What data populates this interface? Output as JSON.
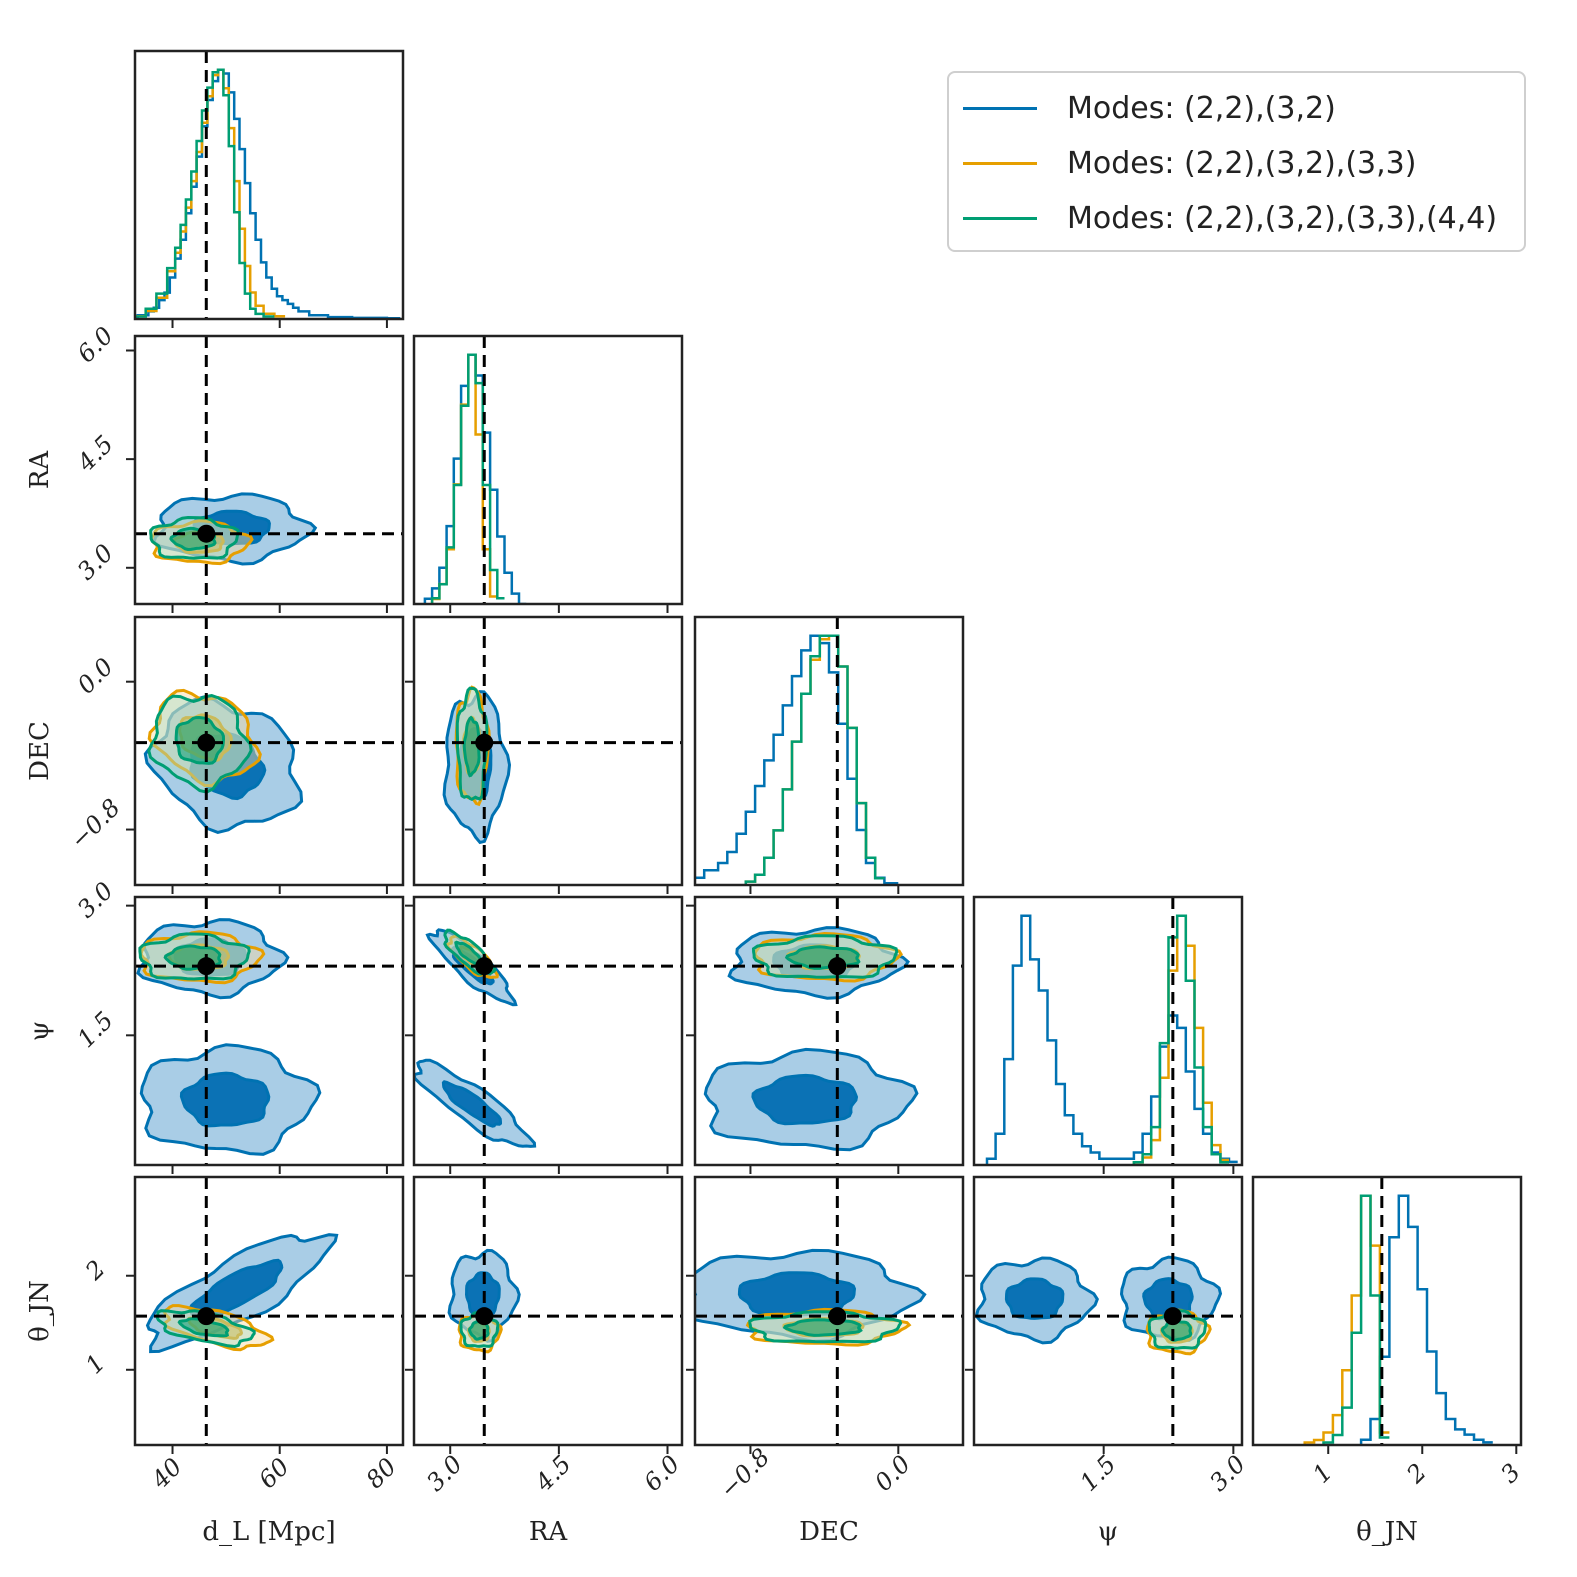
{
  "chart_data": {
    "type": "corner",
    "parameters": [
      {
        "key": "dL",
        "label": "d_L [Mpc]",
        "range": [
          33,
          83
        ],
        "ticks": [
          40,
          60,
          80
        ],
        "truth": 46.3
      },
      {
        "key": "RA",
        "label": "RA",
        "range": [
          2.5,
          6.2
        ],
        "ticks": [
          3.0,
          4.5,
          6.0
        ],
        "truth": 3.47
      },
      {
        "key": "DEC",
        "label": "DEC",
        "range": [
          -1.1,
          0.35
        ],
        "ticks": [
          -0.8,
          0.0
        ],
        "truth": -0.33
      },
      {
        "key": "psi",
        "label": "ψ",
        "range": [
          0.0,
          3.1
        ],
        "ticks": [
          1.5,
          3.0
        ],
        "truth": 2.3
      },
      {
        "key": "theta",
        "label": "θ_JN",
        "range": [
          0.2,
          3.05
        ],
        "ticks": [
          1,
          2,
          3
        ],
        "truth": 1.57
      }
    ],
    "y_ticks": {
      "RA": [
        {
          "v": 3.0,
          "t": "3.0"
        },
        {
          "v": 4.5,
          "t": "4.5"
        },
        {
          "v": 6.0,
          "t": "6.0"
        }
      ],
      "DEC": [
        {
          "v": -0.8,
          "t": "−0.8"
        },
        {
          "v": 0.0,
          "t": "0.0"
        }
      ],
      "psi": [
        {
          "v": 1.5,
          "t": "1.5"
        },
        {
          "v": 3.0,
          "t": "3.0"
        }
      ],
      "theta": [
        {
          "v": 1,
          "t": "1"
        },
        {
          "v": 2,
          "t": "2"
        }
      ]
    },
    "x_ticks": {
      "dL": [
        "40",
        "60",
        "80"
      ],
      "RA": [
        "3.0",
        "4.5",
        "6.0"
      ],
      "DEC": [
        "−0.8",
        "0.0"
      ],
      "psi": [
        "1.5",
        "3.0"
      ],
      "theta": [
        "1",
        "2",
        "3"
      ]
    },
    "series": [
      {
        "name": "Modes:  (2,2),(3,2)",
        "color": "#0072B2",
        "fill_light": "#a9cde6",
        "fill_dark": "#0b72b5",
        "marginals": {
          "dL": {
            "centers": [
              33,
              34,
              35,
              36,
              37,
              38,
              39,
              40,
              41,
              42,
              43,
              44,
              45,
              46,
              47,
              48,
              49,
              50,
              51,
              52,
              53,
              54,
              55,
              56,
              57,
              58,
              59,
              60,
              61,
              62,
              63,
              64,
              65,
              66,
              67,
              68,
              70,
              72,
              75,
              78,
              82
            ],
            "counts": [
              0,
              1,
              1,
              2,
              3,
              5,
              7,
              11,
              16,
              21,
              28,
              35,
              43,
              51,
              58,
              63,
              66,
              65,
              60,
              53,
              45,
              36,
              28,
              21,
              15,
              11,
              8,
              6,
              5,
              4,
              3,
              2,
              2,
              1,
              1,
              1,
              0.5,
              0.5,
              0.3,
              0.3,
              0.2
            ]
          },
          "RA": {
            "centers": [
              2.7,
              2.8,
              2.9,
              3.0,
              3.1,
              3.2,
              3.3,
              3.4,
              3.5,
              3.6,
              3.7,
              3.8,
              3.9,
              4.0
            ],
            "counts": [
              1,
              3,
              7,
              15,
              28,
              42,
              48,
              44,
              33,
              22,
              13,
              6,
              2,
              0
            ]
          },
          "DEC": {
            "centers": [
              -1.1,
              -1.0,
              -0.95,
              -0.9,
              -0.85,
              -0.8,
              -0.75,
              -0.7,
              -0.65,
              -0.6,
              -0.55,
              -0.5,
              -0.45,
              -0.4,
              -0.35,
              -0.3,
              -0.25,
              -0.2,
              -0.15,
              -0.1,
              -0.05
            ],
            "counts": [
              2,
              4,
              6,
              9,
              14,
              20,
              27,
              34,
              41,
              49,
              57,
              64,
              68,
              66,
              58,
              44,
              29,
              15,
              6,
              2,
              0.5
            ]
          },
          "psi": {
            "centers": [
              0.2,
              0.3,
              0.4,
              0.5,
              0.6,
              0.7,
              0.8,
              0.9,
              1.0,
              1.1,
              1.2,
              1.3,
              1.4,
              1.5,
              1.6,
              1.7,
              1.8,
              1.9,
              2.0,
              2.1,
              2.2,
              2.3,
              2.4,
              2.5,
              2.6,
              2.7,
              2.8,
              2.9,
              3.0
            ],
            "counts": [
              1,
              5,
              17,
              32,
              40,
              33,
              28,
              20,
              13,
              8,
              5,
              3,
              2,
              1,
              1,
              1,
              1,
              2,
              5,
              11,
              19,
              24,
              22,
              15,
              9,
              5,
              2,
              1,
              0.5
            ]
          },
          "theta": {
            "centers": [
              1.4,
              1.5,
              1.6,
              1.7,
              1.8,
              1.9,
              2.0,
              2.1,
              2.2,
              2.3,
              2.4,
              2.5,
              2.6,
              2.7
            ],
            "counts": [
              1,
              5,
              17,
              40,
              48,
              42,
              30,
              18,
              10,
              5,
              3,
              2,
              1,
              0.5
            ]
          }
        }
      },
      {
        "name": "Modes:  (2,2),(3,2),(3,3)",
        "color": "#E69F00",
        "fill_light": "#f6d9a2",
        "fill_dark": "#e6a000",
        "marginals": {
          "dL": {
            "centers": [
              34,
              36,
              38,
              40,
              41,
              42,
              43,
              44,
              45,
              46,
              47,
              48,
              49,
              50,
              51,
              52,
              53,
              54,
              55,
              56,
              58,
              60
            ],
            "counts": [
              1,
              3,
              8,
              18,
              25,
              33,
              42,
              52,
              63,
              74,
              84,
              92,
              94,
              87,
              72,
              52,
              34,
              20,
              10,
              5,
              2,
              1
            ]
          },
          "RA": {
            "centers": [
              2.8,
              2.9,
              3.0,
              3.1,
              3.2,
              3.3,
              3.4,
              3.5,
              3.6
            ],
            "counts": [
              2,
              8,
              22,
              48,
              80,
              100,
              68,
              22,
              3
            ]
          },
          "DEC": {
            "centers": [
              -0.8,
              -0.75,
              -0.7,
              -0.65,
              -0.6,
              -0.55,
              -0.5,
              -0.45,
              -0.4,
              -0.35,
              -0.3,
              -0.25,
              -0.2,
              -0.15,
              -0.1
            ],
            "counts": [
              1,
              3,
              8,
              16,
              28,
              42,
              56,
              66,
              72,
              73,
              64,
              46,
              24,
              8,
              2
            ]
          },
          "psi": {
            "centers": [
              1.9,
              2.0,
              2.1,
              2.2,
              2.3,
              2.4,
              2.5,
              2.6,
              2.7,
              2.8,
              2.9
            ],
            "counts": [
              1,
              3,
              10,
              35,
              78,
              100,
              88,
              55,
              25,
              8,
              2
            ]
          },
          "theta": {
            "centers": [
              0.8,
              0.9,
              1.0,
              1.1,
              1.2,
              1.3,
              1.4,
              1.5,
              1.6
            ],
            "counts": [
              1,
              2,
              5,
              12,
              30,
              60,
              100,
              80,
              5
            ]
          }
        }
      },
      {
        "name": "Modes:  (2,2),(3,2),(3,3),(4,4)",
        "color": "#009E73",
        "fill_light": "#a8dcc8",
        "fill_dark": "#0a9e73",
        "marginals": {
          "dL": {
            "centers": [
              34,
              36,
              38,
              40,
              41,
              42,
              43,
              44,
              45,
              46,
              47,
              48,
              49,
              50,
              51,
              52,
              53,
              54,
              55,
              56,
              58
            ],
            "counts": [
              1,
              4,
              10,
              20,
              28,
              37,
              47,
              58,
              70,
              82,
              91,
              97,
              98,
              88,
              68,
              42,
              22,
              10,
              4,
              2,
              1
            ]
          },
          "RA": {
            "centers": [
              2.8,
              2.9,
              3.0,
              3.1,
              3.2,
              3.3,
              3.4,
              3.5,
              3.6,
              3.7
            ],
            "counts": [
              2,
              7,
              20,
              42,
              70,
              88,
              78,
              42,
              12,
              2
            ]
          },
          "DEC": {
            "centers": [
              -0.8,
              -0.75,
              -0.7,
              -0.65,
              -0.6,
              -0.55,
              -0.5,
              -0.45,
              -0.4,
              -0.35,
              -0.3,
              -0.25,
              -0.2,
              -0.15,
              -0.1
            ],
            "counts": [
              1,
              3,
              8,
              16,
              28,
              42,
              56,
              67,
              73,
              73,
              64,
              46,
              24,
              8,
              2
            ]
          },
          "psi": {
            "centers": [
              1.9,
              2.0,
              2.1,
              2.2,
              2.3,
              2.4,
              2.5,
              2.6,
              2.7,
              2.8,
              2.9
            ],
            "counts": [
              1,
              4,
              14,
              45,
              84,
              92,
              68,
              36,
              14,
              4,
              1
            ]
          },
          "theta": {
            "centers": [
              1.0,
              1.1,
              1.2,
              1.3,
              1.4,
              1.5,
              1.6
            ],
            "counts": [
              1,
              4,
              15,
              45,
              100,
              60,
              3
            ]
          }
        }
      }
    ],
    "legend_position": "top-right",
    "truth_marker": "black dashed lines with black dots"
  },
  "legend": {
    "items": [
      {
        "label": "Modes:  (2,2),(3,2)",
        "color": "#0072B2"
      },
      {
        "label": "Modes:  (2,2),(3,2),(3,3)",
        "color": "#E69F00"
      },
      {
        "label": "Modes:  (2,2),(3,2),(3,3),(4,4)",
        "color": "#009E73"
      }
    ]
  }
}
